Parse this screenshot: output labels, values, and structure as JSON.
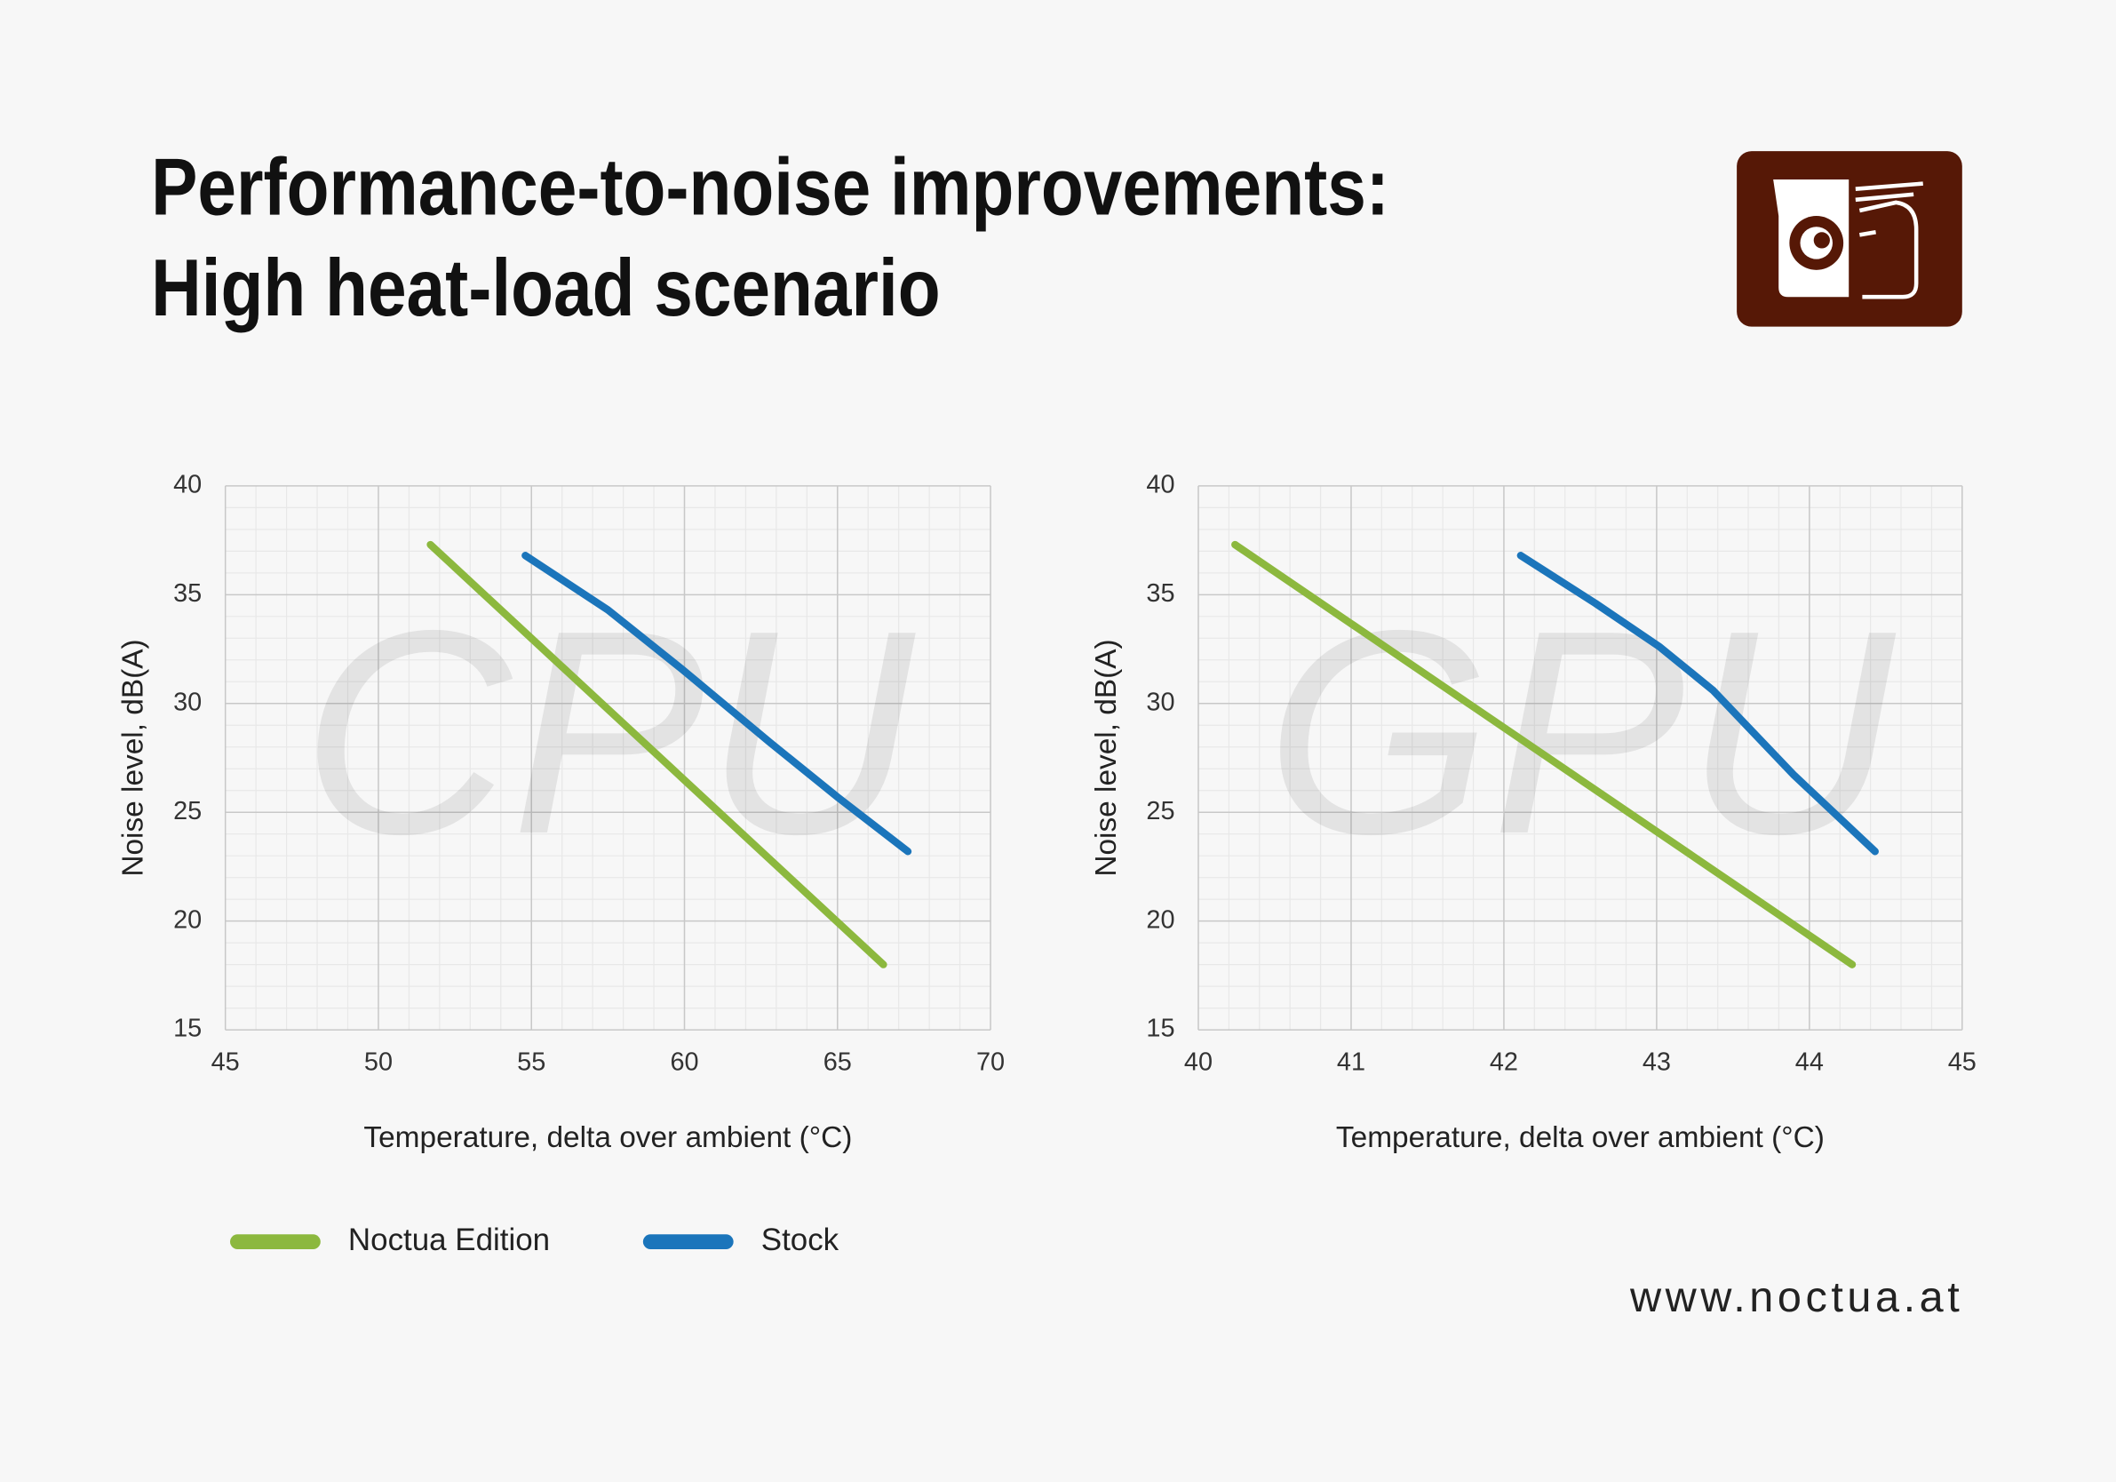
{
  "title": [
    "Performance-to-noise improvements:",
    "High heat-load scenario"
  ],
  "legend": [
    {
      "name": "Noctua Edition",
      "color": "#8cb83e"
    },
    {
      "name": "Stock",
      "color": "#1b75bb"
    }
  ],
  "footer": "www.noctua.at",
  "chart_data": [
    {
      "type": "line",
      "watermark": "CPU",
      "xlabel": "Temperature, delta over ambient (°C)",
      "ylabel": "Noise level, dB(A)",
      "xlim": [
        45,
        70
      ],
      "xticks": [
        45,
        50,
        55,
        60,
        65,
        70
      ],
      "ylim": [
        15,
        40
      ],
      "yticks": [
        15,
        20,
        25,
        30,
        35,
        40
      ],
      "grid": true,
      "series": [
        {
          "color": "#8cb83e",
          "x": [
            51.7,
            66.5
          ],
          "values": [
            37.3,
            18.0
          ]
        },
        {
          "color": "#1b75bb",
          "x": [
            54.8,
            57.5,
            59.9,
            62.8,
            65.0,
            67.3
          ],
          "values": [
            36.8,
            34.3,
            31.6,
            28.2,
            25.7,
            23.2
          ]
        }
      ]
    },
    {
      "type": "line",
      "watermark": "GPU",
      "xlabel": "Temperature, delta over ambient (°C)",
      "ylabel": "Noise level, dB(A)",
      "xlim": [
        40,
        45
      ],
      "xticks": [
        40,
        41,
        42,
        43,
        44,
        45
      ],
      "ylim": [
        15,
        40
      ],
      "yticks": [
        15,
        20,
        25,
        30,
        35,
        40
      ],
      "grid": true,
      "series": [
        {
          "color": "#8cb83e",
          "x": [
            40.24,
            44.28
          ],
          "values": [
            37.3,
            18.0
          ]
        },
        {
          "color": "#1b75bb",
          "x": [
            42.11,
            42.6,
            43.02,
            43.37,
            43.9,
            44.43
          ],
          "values": [
            36.8,
            34.6,
            32.6,
            30.6,
            26.7,
            23.2
          ]
        }
      ]
    }
  ]
}
